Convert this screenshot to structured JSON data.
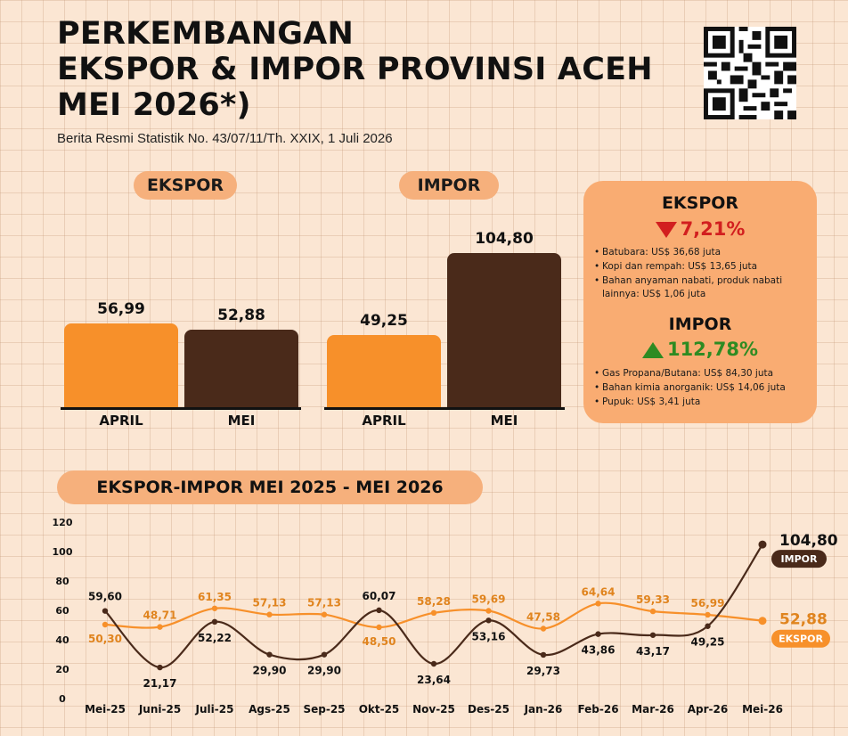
{
  "header": {
    "title_lines": [
      "PERKEMBANGAN",
      "EKSPOR & IMPOR PROVINSI ACEH",
      "MEI 2026*)"
    ],
    "subtitle": "Berita Resmi Statistik No. 43/07/11/Th. XXIX, 1 Juli 2026"
  },
  "colors": {
    "ekspor": "#f7902a",
    "impor": "#4a2a1a",
    "down": "#d21f1f",
    "up": "#2e8b22"
  },
  "bars": {
    "ekspor": {
      "label": "EKSPOR",
      "april": {
        "label": "APRIL",
        "value": 56.99,
        "text": "56,99"
      },
      "mei": {
        "label": "MEI",
        "value": 52.88,
        "text": "52,88"
      }
    },
    "impor": {
      "label": "IMPOR",
      "april": {
        "label": "APRIL",
        "value": 49.25,
        "text": "49,25"
      },
      "mei": {
        "label": "MEI",
        "value": 104.8,
        "text": "104,80"
      }
    }
  },
  "panel": {
    "ekspor": {
      "heading": "EKSPOR",
      "direction": "down",
      "change": "7,21%",
      "items": [
        "Batubara: US$ 36,68 juta",
        "Kopi dan rempah: US$ 13,65 juta",
        "Bahan anyaman nabati, produk nabati lainnya: US$ 1,06 juta"
      ]
    },
    "impor": {
      "heading": "IMPOR",
      "direction": "up",
      "change": "112,78%",
      "items": [
        "Gas Propana/Butana: US$ 84,30 juta",
        "Bahan kimia anorganik: US$ 14,06 juta",
        "Pupuk: US$ 3,41 juta"
      ]
    }
  },
  "chart_data": {
    "type": "line",
    "title": "EKSPOR-IMPOR MEI 2025 - MEI 2026",
    "categories": [
      "Mei-25",
      "Juni-25",
      "Juli-25",
      "Ags-25",
      "Sep-25",
      "Okt-25",
      "Nov-25",
      "Des-25",
      "Jan-26",
      "Feb-26",
      "Mar-26",
      "Apr-26",
      "Mei-26"
    ],
    "ylim": [
      0,
      120
    ],
    "yticks": [
      0,
      20,
      40,
      60,
      80,
      100,
      120
    ],
    "series": [
      {
        "name": "EKSPOR",
        "color": "#f7902a",
        "values": [
          50.3,
          48.71,
          61.35,
          57.13,
          57.13,
          48.5,
          58.28,
          59.69,
          47.58,
          64.64,
          59.33,
          56.99,
          52.88
        ],
        "labels": [
          "50,30",
          "48,71",
          "61,35",
          "57,13",
          "57,13",
          "48,50",
          "58,28",
          "59,69",
          "47,58",
          "64,64",
          "59,33",
          "56,99",
          "52,88"
        ]
      },
      {
        "name": "IMPOR",
        "color": "#4a2a1a",
        "values": [
          59.6,
          21.17,
          52.22,
          29.9,
          29.9,
          60.07,
          23.64,
          53.16,
          29.73,
          43.86,
          43.17,
          49.25,
          104.8
        ],
        "labels": [
          "59,60",
          "21,17",
          "52,22",
          "29,90",
          "29,90",
          "60,07",
          "23,64",
          "53,16",
          "29,73",
          "43,86",
          "43,17",
          "49,25",
          "104,80"
        ]
      }
    ]
  }
}
